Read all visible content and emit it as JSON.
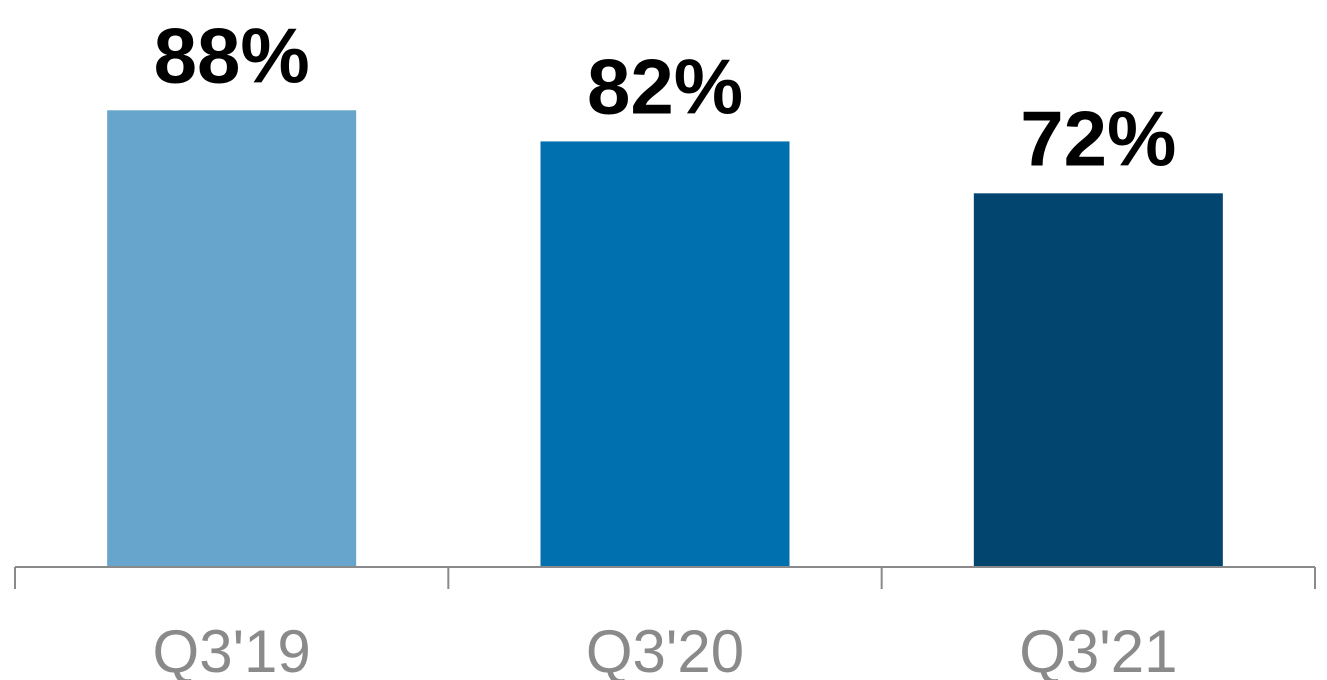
{
  "chart_data": {
    "type": "bar",
    "categories": [
      "Q3'19",
      "Q3'20",
      "Q3'21"
    ],
    "values": [
      88,
      82,
      72
    ],
    "data_labels": [
      "88%",
      "82%",
      "72%"
    ],
    "colors": [
      "#67a5cc",
      "#0070ae",
      "#02466f"
    ],
    "axis_color": "#8a8a8a",
    "ylim": [
      0,
      100
    ],
    "grid": false,
    "legend": "none"
  }
}
